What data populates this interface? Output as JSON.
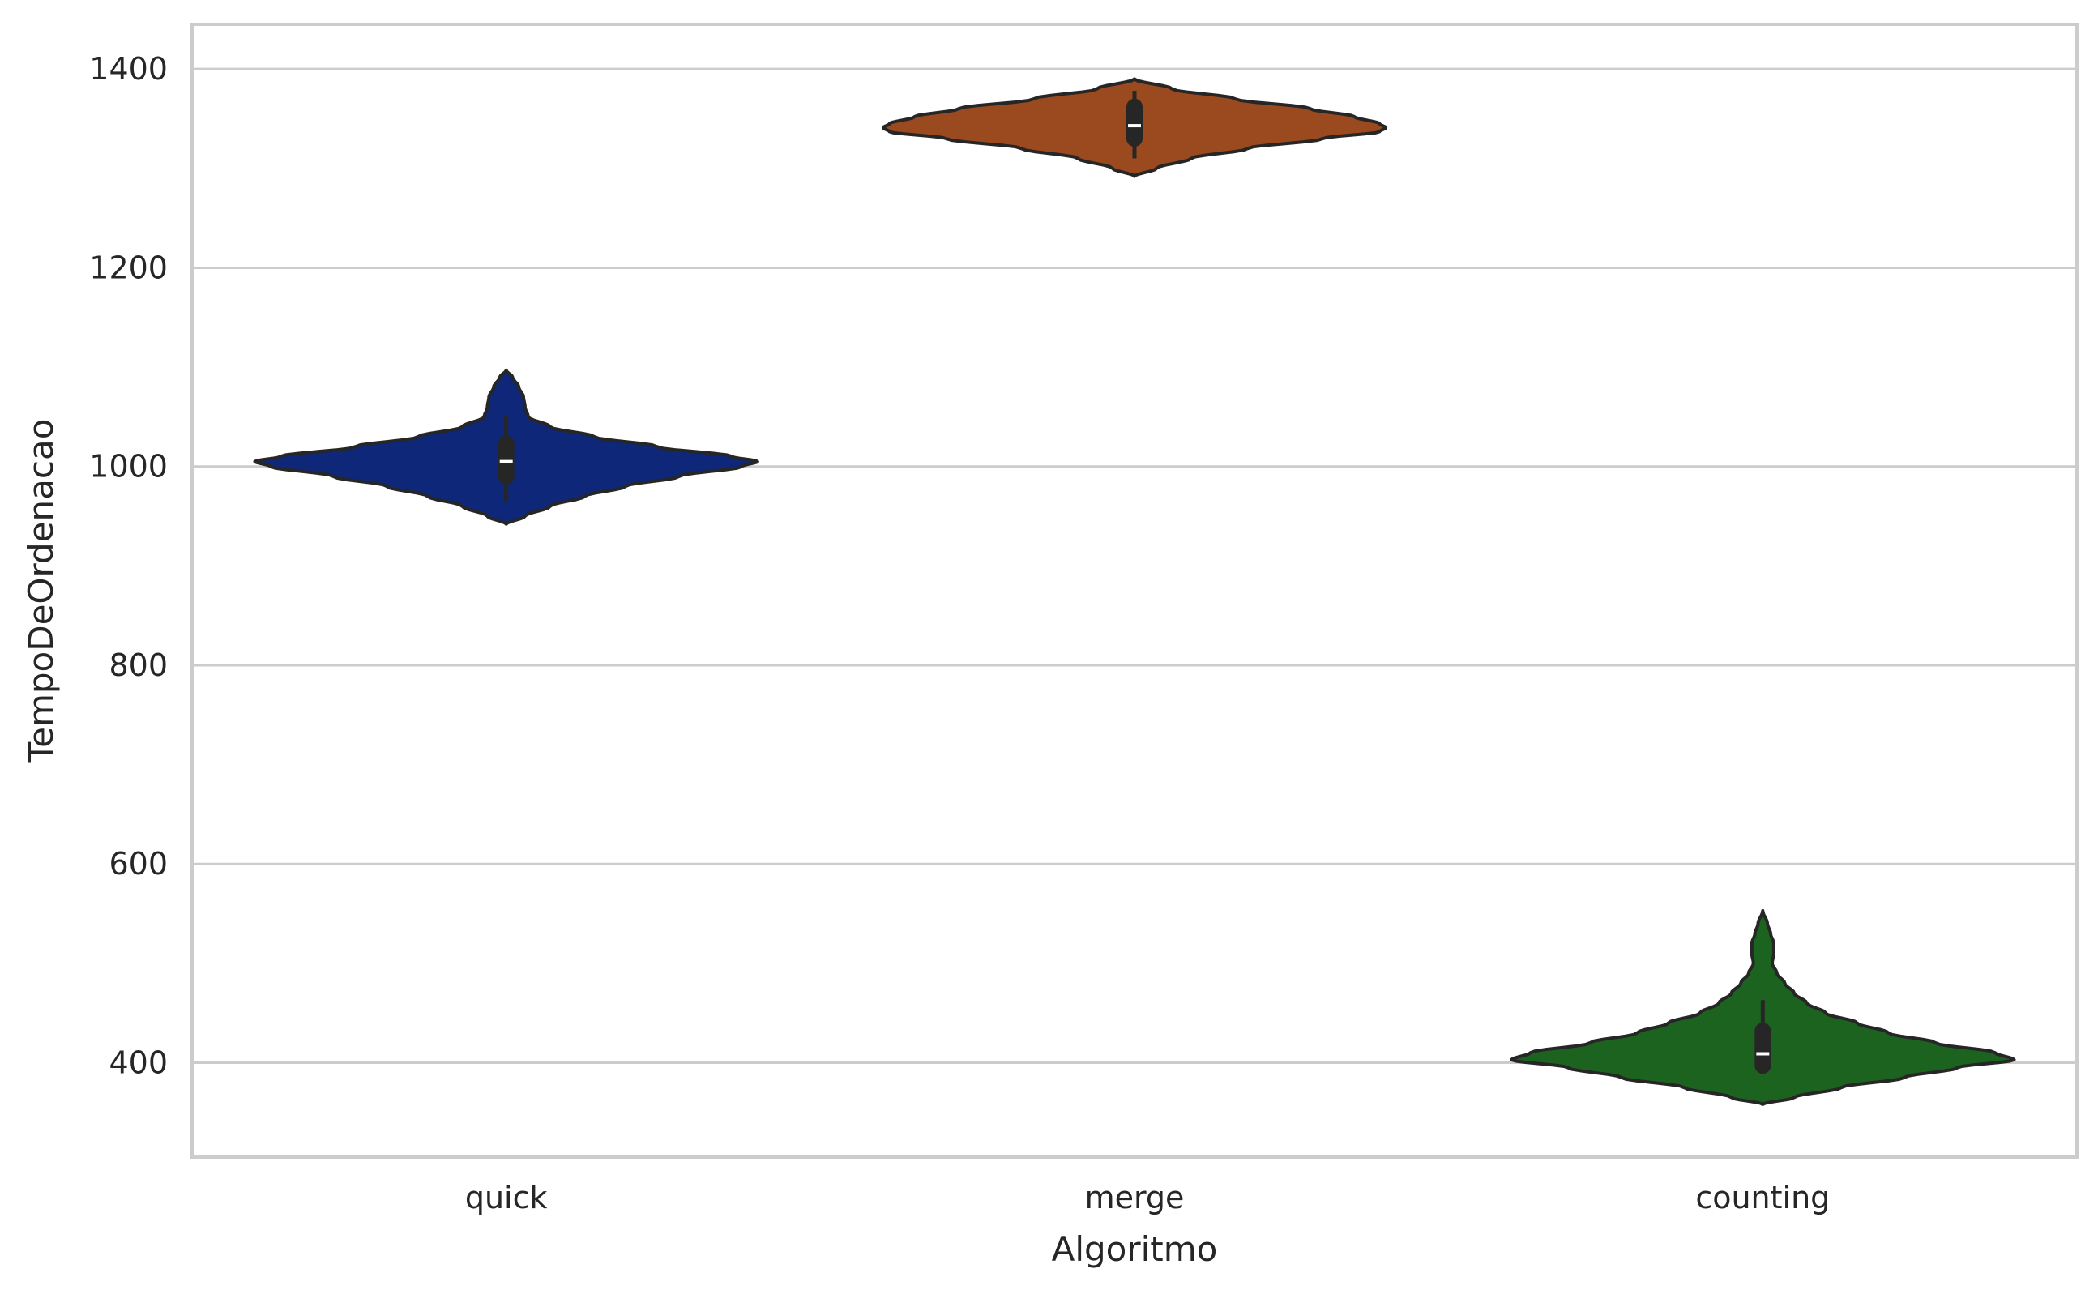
{
  "chart_data": {
    "type": "violin",
    "xlabel": "Algoritmo",
    "ylabel": "TempoDeOrdenacao",
    "ylim": [
      305,
      1445
    ],
    "yticks": [
      400,
      600,
      800,
      1000,
      1200,
      1400
    ],
    "ytick_labels": [
      "400",
      "600",
      "800",
      "1000",
      "1200",
      "1400"
    ],
    "grid": "horizontal",
    "categories": [
      "quick",
      "merge",
      "counting"
    ],
    "series": [
      {
        "category": "quick",
        "color": "#0e2778",
        "density": [
          [
            942,
            0.0
          ],
          [
            950,
            0.06
          ],
          [
            960,
            0.14
          ],
          [
            970,
            0.25
          ],
          [
            980,
            0.38
          ],
          [
            990,
            0.55
          ],
          [
            1000,
            0.75
          ],
          [
            1005,
            0.8
          ],
          [
            1010,
            0.72
          ],
          [
            1020,
            0.48
          ],
          [
            1030,
            0.28
          ],
          [
            1040,
            0.14
          ],
          [
            1050,
            0.07
          ],
          [
            1060,
            0.06
          ],
          [
            1070,
            0.055
          ],
          [
            1080,
            0.04
          ],
          [
            1090,
            0.02
          ],
          [
            1097,
            0.0
          ]
        ],
        "box": {
          "whisker_low": 965,
          "q1": 990,
          "median": 1005,
          "q3": 1023,
          "whisker_high": 1052
        }
      },
      {
        "category": "merge",
        "color": "#9b4a1f",
        "density": [
          [
            1292,
            0.0
          ],
          [
            1300,
            0.07
          ],
          [
            1310,
            0.18
          ],
          [
            1320,
            0.36
          ],
          [
            1330,
            0.6
          ],
          [
            1337,
            0.78
          ],
          [
            1341,
            0.8
          ],
          [
            1345,
            0.78
          ],
          [
            1352,
            0.7
          ],
          [
            1360,
            0.56
          ],
          [
            1370,
            0.32
          ],
          [
            1380,
            0.12
          ],
          [
            1390,
            0.0
          ]
        ],
        "box": {
          "whisker_low": 1310,
          "q1": 1330,
          "median": 1343,
          "q3": 1362,
          "whisker_high": 1378
        }
      },
      {
        "category": "counting",
        "color": "#1d6320",
        "density": [
          [
            358,
            0.0
          ],
          [
            365,
            0.1
          ],
          [
            375,
            0.25
          ],
          [
            385,
            0.45
          ],
          [
            395,
            0.62
          ],
          [
            403,
            0.8
          ],
          [
            410,
            0.74
          ],
          [
            420,
            0.55
          ],
          [
            430,
            0.4
          ],
          [
            440,
            0.3
          ],
          [
            450,
            0.2
          ],
          [
            460,
            0.14
          ],
          [
            470,
            0.1
          ],
          [
            480,
            0.07
          ],
          [
            490,
            0.045
          ],
          [
            500,
            0.03
          ],
          [
            510,
            0.035
          ],
          [
            520,
            0.035
          ],
          [
            530,
            0.025
          ],
          [
            540,
            0.015
          ],
          [
            553,
            0.0
          ]
        ],
        "box": {
          "whisker_low": 392,
          "q1": 397,
          "median": 409,
          "q3": 432,
          "whisker_high": 463
        }
      }
    ]
  }
}
